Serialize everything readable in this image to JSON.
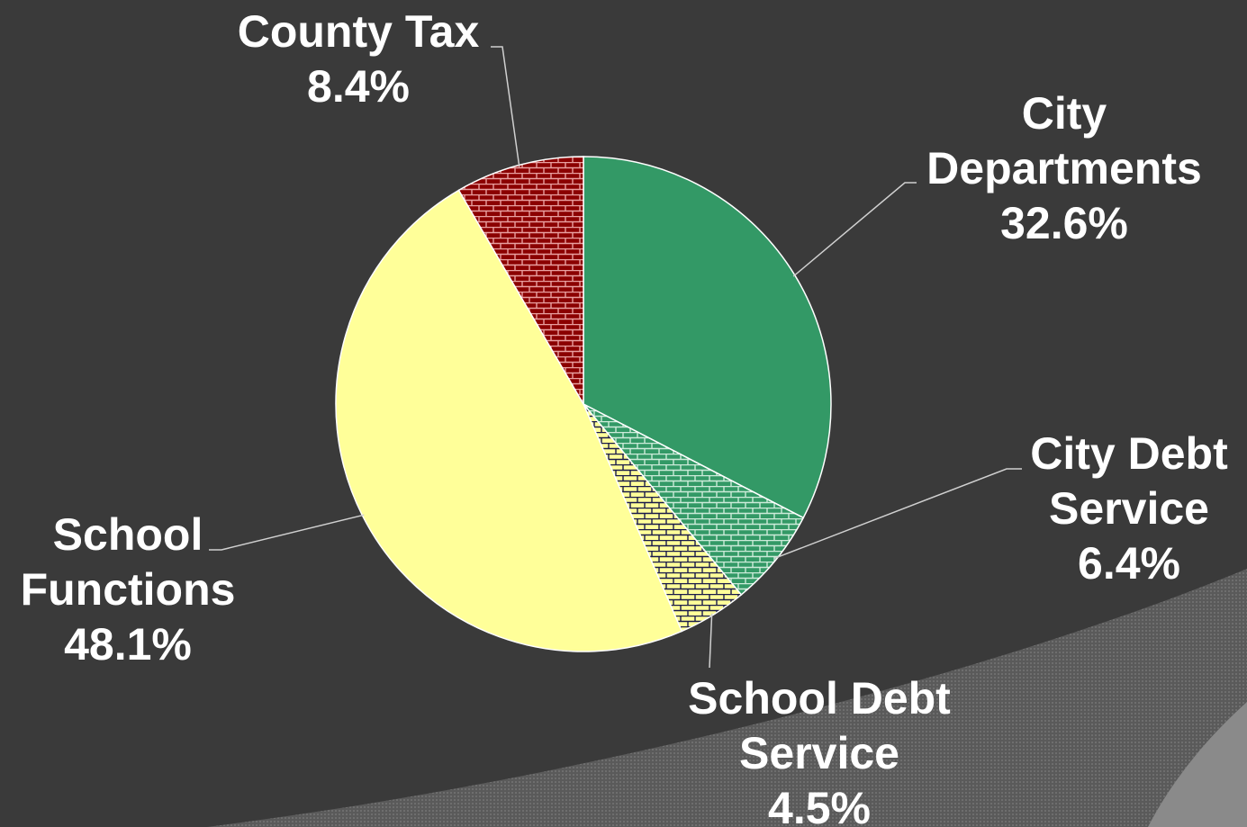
{
  "chart_data": {
    "type": "pie",
    "title": "",
    "slices": [
      {
        "name_lines": [
          "City",
          "Departments"
        ],
        "value": 32.6,
        "value_label": "32.6%",
        "color": "#339966",
        "pattern": "solid"
      },
      {
        "name_lines": [
          "City Debt",
          "Service"
        ],
        "value": 6.4,
        "value_label": "6.4%",
        "color": "#339966",
        "pattern": "brick"
      },
      {
        "name_lines": [
          "School Debt",
          "Service"
        ],
        "value": 4.5,
        "value_label": "4.5%",
        "color": "#ffff99",
        "pattern": "brick"
      },
      {
        "name_lines": [
          "School",
          "Functions"
        ],
        "value": 48.1,
        "value_label": "48.1%",
        "color": "#ffff99",
        "pattern": "solid"
      },
      {
        "name_lines": [
          "County Tax"
        ],
        "value": 8.4,
        "value_label": "8.4%",
        "color": "#8b0000",
        "pattern": "brick"
      }
    ],
    "start_angle": "12 o'clock",
    "direction": "clockwise",
    "legend": "none",
    "labels": "outside with leader lines"
  }
}
